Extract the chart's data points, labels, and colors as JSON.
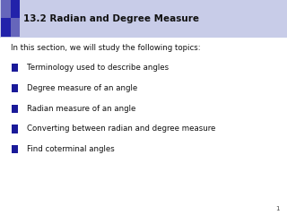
{
  "title": "13.2 Radian and Degree Measure",
  "title_bg_color": "#c8cce8",
  "title_font_size": 7.5,
  "intro_text": "In this section, we will study the following topics:",
  "intro_font_size": 6.2,
  "bullet_items": [
    "Terminology used to describe angles",
    "Degree measure of an angle",
    "Radian measure of an angle",
    "Converting between radian and degree measure",
    "Find coterminal angles"
  ],
  "bullet_font_size": 6.2,
  "bullet_color": "#1a1a99",
  "bg_color": "#ffffff",
  "page_number": "1",
  "page_num_font_size": 5,
  "sq_colors": [
    "#6666bb",
    "#2222aa",
    "#2222aa",
    "#6666bb"
  ]
}
